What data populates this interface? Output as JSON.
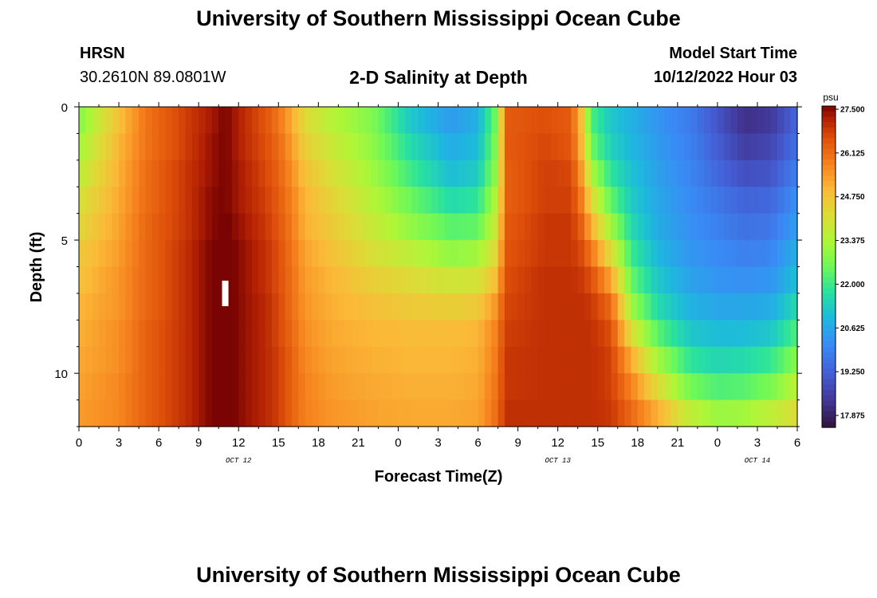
{
  "header": {
    "title": "University of Southern Mississippi Ocean Cube",
    "station_name": "HRSN",
    "station_coords": "30.2610N  89.0801W",
    "chart_title": "2-D Salinity at Depth",
    "model_start_label": "Model Start Time",
    "model_start_value": "10/12/2022 Hour 03"
  },
  "footer": {
    "title": "University of Southern Mississippi Ocean Cube"
  },
  "chart_data": {
    "type": "heatmap",
    "title": "2-D Salinity at Depth",
    "xlabel": "Forecast Time(Z)",
    "ylabel": "Depth (ft)",
    "colorbar_unit": "psu",
    "colorbar_ticks": [
      "27.500",
      "26.125",
      "24.750",
      "23.375",
      "22.000",
      "20.625",
      "19.250",
      "17.875"
    ],
    "colorbar_range": [
      17.5,
      27.6
    ],
    "x_range_hours": [
      0,
      54
    ],
    "y_range_ft": [
      0,
      12
    ],
    "x_ticks": [
      "0",
      "3",
      "6",
      "9",
      "12",
      "15",
      "18",
      "21",
      "0",
      "3",
      "6",
      "9",
      "12",
      "15",
      "18",
      "21",
      "0",
      "3",
      "6"
    ],
    "y_ticks": [
      "0",
      "5",
      "10"
    ],
    "date_labels": [
      {
        "text": "OCT 12",
        "hour": 12
      },
      {
        "text": "OCT 13",
        "hour": 36
      },
      {
        "text": "OCT 14",
        "hour": 51
      }
    ],
    "current_time_marker_hour": 11,
    "depth_levels_ft": [
      0.5,
      1.5,
      2.5,
      3.5,
      4.5,
      5.5,
      6.5,
      7.5,
      8.5,
      9.5,
      10.5,
      11.5
    ],
    "salinity_profiles": [
      {
        "hour": 0,
        "values": [
          22.8,
          23.2,
          23.6,
          24.0,
          24.3,
          24.6,
          24.8,
          25.0,
          25.1,
          25.2,
          25.3,
          25.4
        ]
      },
      {
        "hour": 3,
        "values": [
          24.8,
          25.0,
          25.1,
          25.2,
          25.3,
          25.4,
          25.5,
          25.5,
          25.6,
          25.6,
          25.7,
          25.7
        ]
      },
      {
        "hour": 5,
        "values": [
          26.0,
          26.0,
          26.1,
          26.1,
          26.2,
          26.2,
          26.2,
          26.2,
          26.3,
          26.3,
          26.3,
          26.3
        ]
      },
      {
        "hour": 8,
        "values": [
          26.8,
          26.8,
          26.9,
          26.9,
          26.9,
          27.0,
          27.0,
          27.0,
          27.0,
          27.0,
          27.0,
          27.0
        ]
      },
      {
        "hour": 10,
        "values": [
          27.3,
          27.4,
          27.4,
          27.5,
          27.5,
          27.6,
          27.6,
          27.6,
          27.6,
          27.6,
          27.6,
          27.6
        ]
      },
      {
        "hour": 11,
        "values": [
          27.6,
          27.6,
          27.6,
          27.6,
          27.7,
          27.8,
          27.8,
          27.8,
          27.8,
          27.8,
          27.8,
          27.8
        ]
      },
      {
        "hour": 12,
        "values": [
          27.2,
          27.2,
          27.3,
          27.3,
          27.4,
          27.5,
          27.5,
          27.5,
          27.5,
          27.5,
          27.5,
          27.5
        ]
      },
      {
        "hour": 14,
        "values": [
          26.5,
          26.6,
          26.7,
          26.8,
          26.9,
          27.0,
          27.0,
          27.1,
          27.1,
          27.1,
          27.1,
          27.1
        ]
      },
      {
        "hour": 15,
        "values": [
          26.0,
          26.2,
          26.3,
          26.4,
          26.5,
          26.6,
          26.6,
          26.7,
          26.7,
          26.8,
          26.8,
          26.8
        ]
      },
      {
        "hour": 16,
        "values": [
          25.2,
          25.4,
          25.6,
          25.8,
          25.9,
          26.0,
          26.1,
          26.1,
          26.2,
          26.3,
          26.3,
          26.3
        ]
      },
      {
        "hour": 17,
        "values": [
          24.2,
          24.5,
          24.8,
          25.0,
          25.1,
          25.3,
          25.4,
          25.5,
          25.6,
          25.7,
          25.8,
          25.8
        ]
      },
      {
        "hour": 19,
        "values": [
          23.5,
          23.8,
          24.1,
          24.4,
          24.6,
          24.8,
          25.0,
          25.1,
          25.2,
          25.3,
          25.4,
          25.5
        ]
      },
      {
        "hour": 22,
        "values": [
          22.8,
          23.0,
          23.2,
          23.5,
          23.8,
          24.1,
          24.5,
          24.8,
          25.0,
          25.1,
          25.2,
          25.3
        ]
      },
      {
        "hour": 25,
        "values": [
          21.2,
          21.6,
          22.0,
          22.5,
          23.0,
          23.6,
          24.2,
          24.6,
          24.9,
          25.0,
          25.1,
          25.2
        ]
      },
      {
        "hour": 28,
        "values": [
          20.4,
          20.7,
          21.0,
          21.6,
          22.3,
          23.0,
          23.9,
          24.5,
          24.9,
          25.0,
          25.1,
          25.2
        ]
      },
      {
        "hour": 30,
        "values": [
          20.8,
          21.0,
          21.3,
          21.8,
          22.4,
          23.2,
          24.0,
          24.6,
          25.0,
          25.1,
          25.2,
          25.3
        ]
      },
      {
        "hour": 31.5,
        "values": [
          22.8,
          23.0,
          23.2,
          23.6,
          24.0,
          24.4,
          25.0,
          25.6,
          25.9,
          26.0,
          26.1,
          26.2
        ]
      },
      {
        "hour": 32,
        "values": [
          26.4,
          26.4,
          26.3,
          26.3,
          26.4,
          26.5,
          26.6,
          26.7,
          26.8,
          26.9,
          26.9,
          27.0
        ]
      },
      {
        "hour": 35,
        "values": [
          26.6,
          26.7,
          26.8,
          26.8,
          26.9,
          26.9,
          27.0,
          27.0,
          27.0,
          27.0,
          27.0,
          27.0
        ]
      },
      {
        "hour": 37,
        "values": [
          26.4,
          26.5,
          26.7,
          26.8,
          26.9,
          26.9,
          27.0,
          27.0,
          27.0,
          27.0,
          27.0,
          27.0
        ]
      },
      {
        "hour": 37.7,
        "values": [
          25.0,
          25.2,
          25.6,
          26.0,
          26.4,
          26.7,
          26.9,
          27.0,
          27.0,
          27.0,
          27.0,
          27.0
        ]
      },
      {
        "hour": 38.5,
        "values": [
          22.2,
          22.6,
          23.4,
          24.3,
          25.2,
          26.0,
          26.6,
          26.9,
          27.0,
          27.0,
          27.0,
          27.0
        ]
      },
      {
        "hour": 40,
        "values": [
          21.2,
          21.4,
          21.8,
          22.4,
          23.2,
          24.2,
          25.3,
          26.2,
          26.6,
          26.8,
          26.8,
          26.9
        ]
      },
      {
        "hour": 41.5,
        "values": [
          20.8,
          20.9,
          21.1,
          21.3,
          21.6,
          22.0,
          22.5,
          23.2,
          24.2,
          25.2,
          25.8,
          26.2
        ]
      },
      {
        "hour": 43.5,
        "values": [
          20.3,
          20.4,
          20.5,
          20.6,
          20.7,
          20.9,
          21.2,
          21.6,
          22.3,
          23.2,
          24.2,
          25.1
        ]
      },
      {
        "hour": 46,
        "values": [
          19.8,
          19.9,
          20.0,
          20.1,
          20.2,
          20.3,
          20.5,
          20.8,
          21.2,
          21.8,
          22.6,
          23.6
        ]
      },
      {
        "hour": 48,
        "values": [
          19.0,
          19.2,
          19.4,
          19.7,
          19.9,
          20.1,
          20.3,
          20.6,
          21.0,
          21.5,
          22.2,
          23.1
        ]
      },
      {
        "hour": 50,
        "values": [
          18.2,
          18.5,
          18.9,
          19.3,
          19.6,
          19.9,
          20.2,
          20.6,
          21.0,
          21.6,
          22.3,
          23.2
        ]
      },
      {
        "hour": 52,
        "values": [
          18.4,
          18.7,
          19.0,
          19.4,
          19.7,
          20.0,
          20.3,
          20.7,
          21.2,
          21.9,
          22.7,
          23.6
        ]
      },
      {
        "hour": 54,
        "values": [
          19.4,
          19.6,
          19.9,
          20.2,
          20.5,
          20.8,
          21.1,
          21.6,
          22.2,
          22.9,
          23.6,
          24.2
        ]
      }
    ]
  }
}
